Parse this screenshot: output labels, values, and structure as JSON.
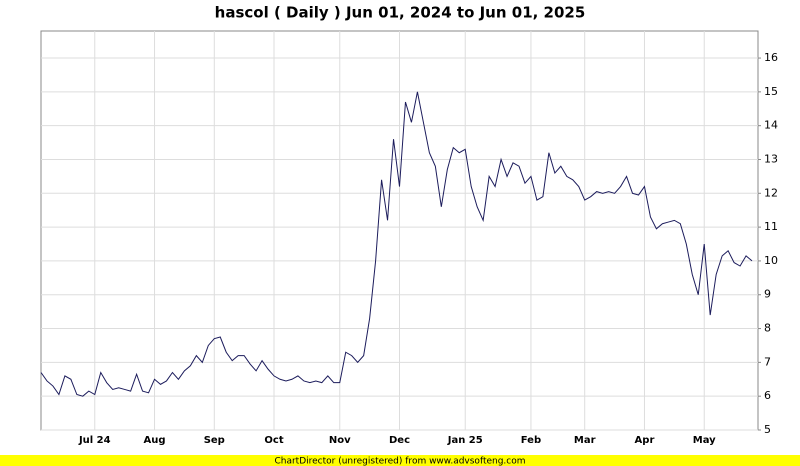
{
  "chart_data": {
    "type": "line",
    "title": "hascol ( Daily ) Jun 01, 2024 to Jun 01, 2025",
    "footer": "ChartDirector (unregistered) from www.advsofteng.com",
    "categories": [
      null,
      null,
      null,
      null,
      null,
      null,
      null,
      null,
      null,
      "Jul 24",
      null,
      null,
      null,
      null,
      null,
      null,
      null,
      null,
      null,
      "Aug",
      null,
      null,
      null,
      null,
      null,
      null,
      null,
      null,
      null,
      "Sep",
      null,
      null,
      null,
      null,
      null,
      null,
      null,
      null,
      null,
      "Oct",
      null,
      null,
      null,
      null,
      null,
      null,
      null,
      null,
      null,
      null,
      "Nov",
      null,
      null,
      null,
      null,
      null,
      null,
      null,
      null,
      null,
      "Dec",
      null,
      null,
      null,
      null,
      null,
      null,
      null,
      null,
      null,
      null,
      "Jan 25",
      null,
      null,
      null,
      null,
      null,
      null,
      null,
      null,
      null,
      null,
      "Feb",
      null,
      null,
      null,
      null,
      null,
      null,
      null,
      null,
      "Mar",
      null,
      null,
      null,
      null,
      null,
      null,
      null,
      null,
      null,
      "Apr",
      null,
      null,
      null,
      null,
      null,
      null,
      null,
      null,
      null,
      "May",
      null,
      null,
      null,
      null,
      null,
      null,
      null,
      null
    ],
    "values": [
      6.7,
      6.45,
      6.3,
      6.05,
      6.6,
      6.5,
      6.05,
      6.0,
      6.15,
      6.05,
      6.7,
      6.4,
      6.2,
      6.25,
      6.2,
      6.15,
      6.65,
      6.15,
      6.1,
      6.5,
      6.35,
      6.45,
      6.7,
      6.5,
      6.75,
      6.9,
      7.2,
      7.0,
      7.5,
      7.7,
      7.75,
      7.3,
      7.05,
      7.2,
      7.2,
      6.95,
      6.75,
      7.05,
      6.8,
      6.6,
      6.5,
      6.45,
      6.5,
      6.6,
      6.45,
      6.4,
      6.45,
      6.4,
      6.6,
      6.4,
      6.4,
      7.3,
      7.2,
      7.0,
      7.2,
      8.3,
      10.0,
      12.4,
      11.2,
      13.6,
      12.2,
      14.7,
      14.1,
      15.0,
      14.1,
      13.2,
      12.8,
      11.6,
      12.7,
      13.35,
      13.2,
      13.3,
      12.2,
      11.6,
      11.2,
      12.5,
      12.2,
      13.0,
      12.5,
      12.9,
      12.8,
      12.3,
      12.5,
      11.8,
      11.9,
      13.2,
      12.6,
      12.8,
      12.5,
      12.4,
      12.2,
      11.8,
      11.9,
      12.05,
      12.0,
      12.05,
      12.0,
      12.2,
      12.5,
      12.0,
      11.95,
      12.2,
      11.3,
      10.95,
      11.1,
      11.15,
      11.2,
      11.1,
      10.5,
      9.6,
      9.0,
      10.5,
      8.4,
      9.6,
      10.15,
      10.3,
      9.95,
      9.85,
      10.15,
      10.0
    ],
    "color": "#1c1c5c",
    "ylim": [
      5,
      16.8
    ],
    "yticks": [
      5,
      6,
      7,
      8,
      9,
      10,
      11,
      12,
      13,
      14,
      15,
      16
    ],
    "grid": true
  }
}
